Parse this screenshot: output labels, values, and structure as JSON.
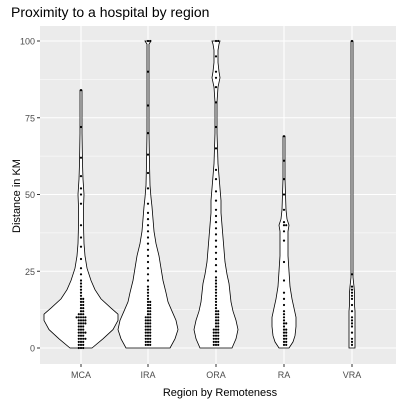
{
  "chart_data": {
    "type": "violin",
    "title": "Proximity to a hospital by region",
    "xlabel": "Region by Remoteness",
    "ylabel": "Distance in KM",
    "categories": [
      "MCA",
      "IRA",
      "ORA",
      "RA",
      "VRA"
    ],
    "ylim": [
      0,
      100
    ],
    "yticks": [
      0,
      25,
      50,
      75,
      100
    ],
    "grid": true,
    "background": "#EBEBEB",
    "gridline_color": "#FFFFFF",
    "violins": [
      {
        "category": "MCA",
        "profile": [
          [
            0,
            11
          ],
          [
            3,
            22
          ],
          [
            6,
            32
          ],
          [
            9,
            37
          ],
          [
            11,
            37
          ],
          [
            13,
            30
          ],
          [
            16,
            20
          ],
          [
            19,
            14
          ],
          [
            22,
            10
          ],
          [
            26,
            6
          ],
          [
            30,
            4
          ],
          [
            34,
            3
          ],
          [
            40,
            2.5
          ],
          [
            46,
            2.5
          ],
          [
            50,
            3
          ],
          [
            55,
            2
          ],
          [
            60,
            1.5
          ],
          [
            70,
            1
          ],
          [
            84,
            1
          ]
        ],
        "points": [
          0,
          0,
          0,
          1,
          1,
          1,
          2,
          2,
          2,
          3,
          3,
          3,
          3,
          4,
          4,
          4,
          5,
          5,
          5,
          5,
          6,
          6,
          6,
          7,
          7,
          7,
          8,
          8,
          8,
          8,
          9,
          9,
          9,
          9,
          10,
          10,
          10,
          10,
          10,
          11,
          11,
          11,
          12,
          12,
          13,
          13,
          14,
          14,
          15,
          15,
          16,
          16,
          17,
          18,
          19,
          20,
          21,
          22,
          24,
          26,
          29,
          33,
          36,
          40,
          47,
          50,
          52,
          56,
          62,
          72,
          84
        ]
      },
      {
        "category": "IRA",
        "profile": [
          [
            0,
            22
          ],
          [
            3,
            27
          ],
          [
            6,
            30
          ],
          [
            9,
            28
          ],
          [
            12,
            24
          ],
          [
            15,
            20
          ],
          [
            18,
            18
          ],
          [
            22,
            15
          ],
          [
            26,
            13
          ],
          [
            30,
            11
          ],
          [
            34,
            8
          ],
          [
            38,
            6
          ],
          [
            42,
            5
          ],
          [
            46,
            4
          ],
          [
            49,
            3
          ],
          [
            53,
            2
          ],
          [
            60,
            1.5
          ],
          [
            70,
            1
          ],
          [
            85,
            1
          ],
          [
            99,
            1
          ],
          [
            100,
            3
          ]
        ],
        "points": [
          1,
          1,
          1,
          2,
          2,
          2,
          3,
          3,
          3,
          4,
          4,
          4,
          5,
          5,
          5,
          6,
          6,
          6,
          7,
          7,
          7,
          8,
          8,
          8,
          9,
          9,
          9,
          10,
          10,
          10,
          11,
          11,
          12,
          12,
          13,
          13,
          14,
          14,
          15,
          15,
          16,
          17,
          18,
          19,
          20,
          22,
          24,
          26,
          28,
          30,
          32,
          34,
          36,
          38,
          40,
          42,
          44,
          47,
          52,
          57,
          63,
          70,
          79,
          90,
          100,
          100
        ]
      },
      {
        "category": "ORA",
        "profile": [
          [
            0,
            16
          ],
          [
            3,
            20
          ],
          [
            6,
            22
          ],
          [
            9,
            20
          ],
          [
            12,
            17
          ],
          [
            15,
            15
          ],
          [
            18,
            14
          ],
          [
            21,
            13
          ],
          [
            24,
            11
          ],
          [
            28,
            9
          ],
          [
            32,
            8
          ],
          [
            36,
            7
          ],
          [
            40,
            6
          ],
          [
            44,
            5
          ],
          [
            48,
            5
          ],
          [
            52,
            4
          ],
          [
            56,
            3
          ],
          [
            60,
            2
          ],
          [
            65,
            1.5
          ],
          [
            70,
            1
          ],
          [
            80,
            1
          ],
          [
            85,
            2
          ],
          [
            88,
            4
          ],
          [
            90,
            3
          ],
          [
            93,
            2
          ],
          [
            97,
            2
          ],
          [
            99,
            3
          ],
          [
            100,
            4
          ]
        ],
        "points": [
          1,
          1,
          1,
          2,
          2,
          2,
          3,
          3,
          3,
          4,
          4,
          4,
          5,
          5,
          5,
          6,
          6,
          6,
          7,
          7,
          8,
          8,
          9,
          9,
          10,
          10,
          11,
          11,
          12,
          12,
          13,
          14,
          15,
          16,
          17,
          18,
          19,
          20,
          21,
          22,
          23,
          25,
          27,
          29,
          31,
          33,
          35,
          37,
          39,
          41,
          43,
          45,
          48,
          51,
          55,
          58,
          65,
          72,
          80,
          85,
          88,
          90,
          95,
          100,
          100
        ]
      },
      {
        "category": "RA",
        "profile": [
          [
            0,
            5
          ],
          [
            2,
            9
          ],
          [
            4,
            11
          ],
          [
            7,
            12
          ],
          [
            10,
            12
          ],
          [
            13,
            10
          ],
          [
            16,
            8
          ],
          [
            20,
            6
          ],
          [
            25,
            5
          ],
          [
            30,
            4
          ],
          [
            35,
            4
          ],
          [
            38,
            4
          ],
          [
            40,
            5
          ],
          [
            42,
            3
          ],
          [
            45,
            2
          ],
          [
            50,
            1.5
          ],
          [
            55,
            1
          ],
          [
            60,
            1
          ],
          [
            69,
            1
          ]
        ],
        "points": [
          1,
          1,
          2,
          2,
          3,
          3,
          4,
          4,
          5,
          5,
          6,
          6,
          7,
          8,
          8,
          9,
          10,
          11,
          12,
          14,
          16,
          18,
          22,
          28,
          35,
          38,
          40,
          40,
          41,
          45,
          50,
          55,
          61,
          69
        ]
      },
      {
        "category": "VRA",
        "profile": [
          [
            0,
            3
          ],
          [
            2,
            3
          ],
          [
            4,
            3
          ],
          [
            6,
            3
          ],
          [
            8,
            3
          ],
          [
            10,
            3
          ],
          [
            12,
            3
          ],
          [
            14,
            2.5
          ],
          [
            16,
            2.5
          ],
          [
            18,
            2.5
          ],
          [
            20,
            2
          ],
          [
            23,
            1
          ],
          [
            26,
            1
          ],
          [
            35,
            1
          ],
          [
            50,
            1
          ],
          [
            75,
            1
          ],
          [
            99,
            1
          ],
          [
            100,
            1
          ]
        ],
        "points": [
          1,
          2,
          3,
          5,
          7,
          8,
          9,
          10,
          12,
          14,
          16,
          17,
          18,
          19,
          20,
          24,
          100
        ]
      }
    ]
  }
}
